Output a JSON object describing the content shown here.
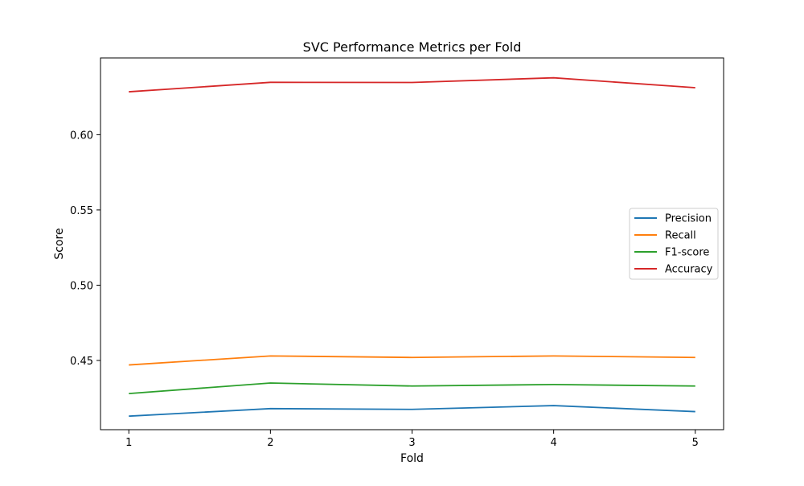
{
  "chart_data": {
    "type": "line",
    "title": "SVC Performance Metrics per Fold",
    "xlabel": "Fold",
    "ylabel": "Score",
    "x": [
      1,
      2,
      3,
      4,
      5
    ],
    "xlim": [
      0.8,
      5.2
    ],
    "ylim": [
      0.404,
      0.651
    ],
    "yticks": [
      0.45,
      0.5,
      0.55,
      0.6
    ],
    "ytick_labels": [
      "0.45",
      "0.50",
      "0.55",
      "0.60"
    ],
    "xticks": [
      1,
      2,
      3,
      4,
      5
    ],
    "xtick_labels": [
      "1",
      "2",
      "3",
      "4",
      "5"
    ],
    "grid": false,
    "legend_position": "center-right",
    "series": [
      {
        "name": "Precision",
        "color": "#1f77b4",
        "values": [
          0.413,
          0.418,
          0.4175,
          0.42,
          0.416
        ]
      },
      {
        "name": "Recall",
        "color": "#ff7f0e",
        "values": [
          0.447,
          0.453,
          0.452,
          0.453,
          0.452
        ]
      },
      {
        "name": "F1-score",
        "color": "#2ca02c",
        "values": [
          0.428,
          0.435,
          0.433,
          0.434,
          0.433
        ]
      },
      {
        "name": "Accuracy",
        "color": "#d62728",
        "values": [
          0.6285,
          0.6348,
          0.6347,
          0.6378,
          0.6312
        ]
      }
    ]
  }
}
